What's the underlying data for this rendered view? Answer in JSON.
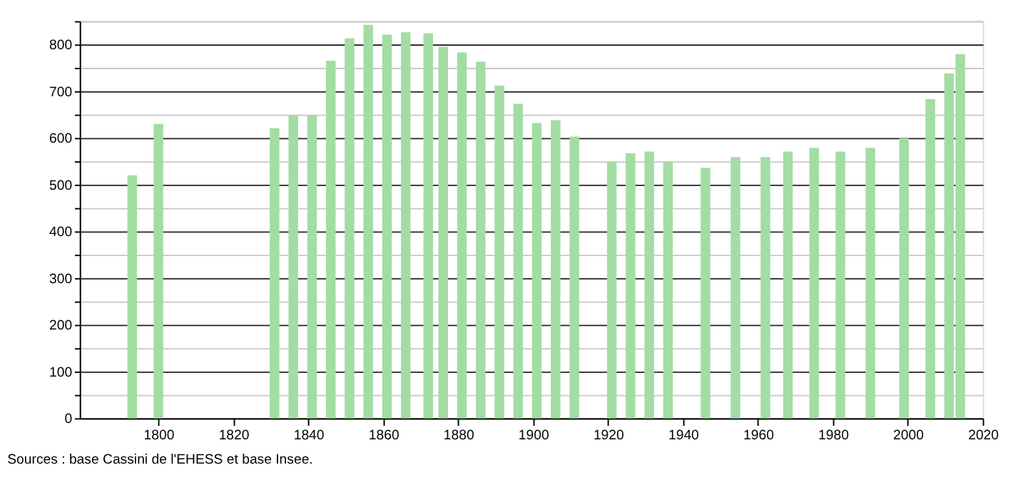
{
  "chart_data": {
    "type": "bar",
    "x": [
      1793,
      1800,
      1831,
      1836,
      1841,
      1846,
      1851,
      1856,
      1861,
      1866,
      1872,
      1876,
      1881,
      1886,
      1891,
      1896,
      1901,
      1906,
      1911,
      1921,
      1926,
      1931,
      1936,
      1946,
      1954,
      1962,
      1968,
      1975,
      1982,
      1990,
      1999,
      2006,
      2011,
      2014
    ],
    "values": [
      520,
      630,
      621,
      648,
      648,
      765,
      813,
      842,
      821,
      826,
      824,
      795,
      783,
      763,
      712,
      673,
      632,
      638,
      603,
      549,
      567,
      571,
      550,
      536,
      559,
      559,
      571,
      579,
      571,
      579,
      599,
      683,
      738,
      779
    ],
    "color": "#a3dda3",
    "xlim": [
      1779,
      2020
    ],
    "xticks": [
      1800,
      1820,
      1840,
      1860,
      1880,
      1900,
      1920,
      1940,
      1960,
      1980,
      2000,
      2020
    ],
    "ylim": [
      0,
      850
    ],
    "yticks": [
      0,
      {
        "value": 50,
        "label": null
      },
      100,
      {
        "value": 150,
        "label": null
      },
      200,
      {
        "value": 250,
        "label": null
      },
      300,
      {
        "value": 350,
        "label": null
      },
      400,
      {
        "value": 450,
        "label": null
      },
      500,
      {
        "value": 550,
        "label": null
      },
      600,
      {
        "value": 650,
        "label": null
      },
      700,
      {
        "value": 750,
        "label": null
      },
      800,
      {
        "value": 850,
        "label": null
      }
    ],
    "grid": "y",
    "annotations": [
      "Sources : base Cassini de l'EHESS et base Insee."
    ]
  }
}
